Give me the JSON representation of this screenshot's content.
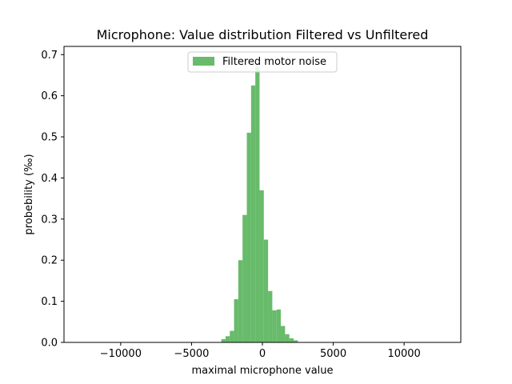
{
  "chart_data": {
    "type": "bar",
    "title": "Microphone: Value distribution Filtered vs Unfiltered",
    "xlabel": "maximal microphone value",
    "ylabel": "probebility (‰)",
    "xlim": [
      -14000,
      14000
    ],
    "ylim": [
      0,
      0.72
    ],
    "xticks": [
      -10000,
      -5000,
      0,
      5000,
      10000
    ],
    "xtick_labels": [
      "−10000",
      "−5000",
      "0",
      "5000",
      "10000"
    ],
    "yticks": [
      0.0,
      0.1,
      0.2,
      0.3,
      0.4,
      0.5,
      0.6,
      0.7
    ],
    "ytick_labels": [
      "0.0",
      "0.1",
      "0.2",
      "0.3",
      "0.4",
      "0.5",
      "0.6",
      "0.7"
    ],
    "grid": false,
    "legend": {
      "placement": "upper center",
      "entries": [
        "Filtered motor noise"
      ]
    },
    "series": [
      {
        "name": "Filtered motor noise",
        "color": "#4caf50",
        "bin_width": 300,
        "bin_starts": [
          -2900,
          -2600,
          -2300,
          -2000,
          -1700,
          -1400,
          -1100,
          -800,
          -500,
          -200,
          100,
          400,
          700,
          1000,
          1300,
          1600,
          1900,
          2200
        ],
        "values": [
          0.008,
          0.015,
          0.028,
          0.105,
          0.2,
          0.31,
          0.51,
          0.625,
          0.67,
          0.37,
          0.25,
          0.125,
          0.078,
          0.08,
          0.04,
          0.02,
          0.01,
          0.005
        ]
      }
    ]
  }
}
